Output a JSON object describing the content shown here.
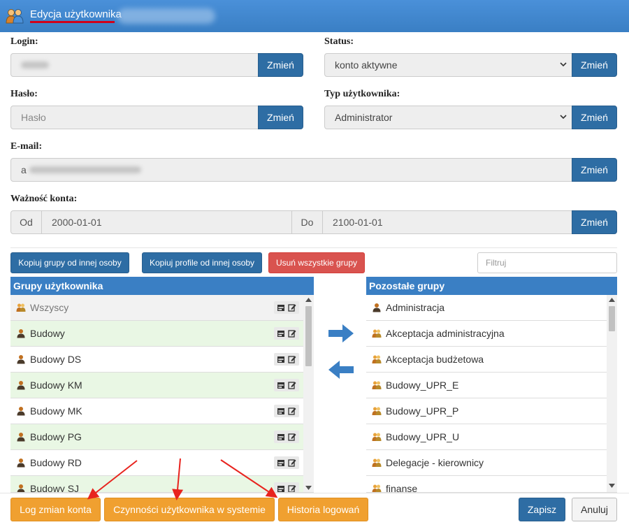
{
  "dialog": {
    "title": "Edycja użytkownika"
  },
  "form": {
    "login_label": "Login:",
    "status_label": "Status:",
    "status_value": "konto aktywne",
    "password_label": "Hasło:",
    "password_placeholder": "Hasło",
    "user_type_label": "Typ użytkownika:",
    "user_type_value": "Administrator",
    "email_label": "E-mail:",
    "email_value_prefix": "a",
    "validity_label": "Ważność konta:",
    "from_label": "Od",
    "from_value": "2000-01-01",
    "to_label": "Do",
    "to_value": "2100-01-01",
    "change_label": "Zmień"
  },
  "actions": {
    "copy_groups": "Kopiuj grupy od innej osoby",
    "copy_profiles": "Kopiuj profile od innej osoby",
    "remove_all_groups": "Usuń wszystkie grupy",
    "filter_placeholder": "Filtruj"
  },
  "user_groups": {
    "header": "Grupy użytkownika",
    "items": [
      "Wszyscy",
      "Budowy",
      "Budowy DS",
      "Budowy KM",
      "Budowy MK",
      "Budowy PG",
      "Budowy RD",
      "Budowy SJ"
    ]
  },
  "other_groups": {
    "header": "Pozostałe grupy",
    "items": [
      "Administracja",
      "Akceptacja administracyjna",
      "Akceptacja budżetowa",
      "Budowy_UPR_E",
      "Budowy_UPR_P",
      "Budowy_UPR_U",
      "Delegacje - kierownicy",
      "finanse"
    ]
  },
  "footer": {
    "change_log": "Log zmian konta",
    "user_activities": "Czynności użytkownika w systemie",
    "login_history": "Historia logowań",
    "save": "Zapisz",
    "cancel": "Anuluj"
  },
  "colors": {
    "title_bar": "#3a7fc4",
    "primary_button": "#2e6da4",
    "danger_button": "#d9534f",
    "warning_button": "#f0a030",
    "annotation_arrow": "#e8231e"
  }
}
